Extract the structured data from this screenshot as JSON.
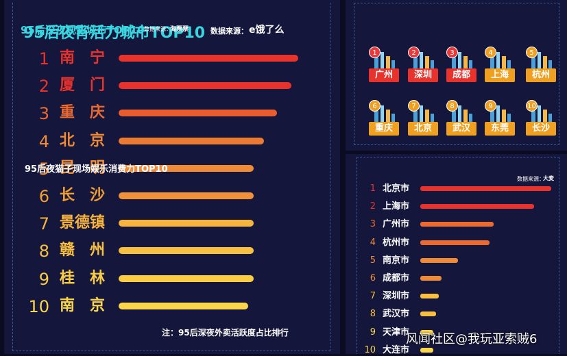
{
  "left_chart": {
    "title": "95后夜宵活力城市TOP10",
    "source_label": "数据来源：",
    "source_logo": "e饿了么",
    "note": "注：95后深夜外卖活跃度占比排行",
    "chart_data": {
      "type": "bar",
      "orientation": "horizontal",
      "categories": [
        "南　宁",
        "厦　门",
        "重　庆",
        "北　京",
        "昆　明",
        "长　沙",
        "景德镇",
        "赣　州",
        "桂　林",
        "南　京"
      ],
      "ranks": [
        "1",
        "2",
        "3",
        "4",
        "5",
        "6",
        "7",
        "8",
        "9",
        "10"
      ],
      "values": [
        100,
        96,
        88,
        81,
        75,
        75,
        75,
        75,
        75,
        72
      ],
      "colors": [
        "#e8332c",
        "#e8332c",
        "#e85c30",
        "#ec7a33",
        "#ef8a36",
        "#f09038",
        "#f7b43c",
        "#f8c03f",
        "#f9cc44",
        "#fad64a"
      ],
      "rank_colors": [
        "#e8332c",
        "#e8332c",
        "#ec6a30",
        "#ef8a36",
        "#f09038",
        "#f0a030",
        "#f7b43c",
        "#f8c03f",
        "#f9cc44",
        "#fad64a"
      ]
    }
  },
  "top_right": {
    "title": "95后深夜观影城市TOP10",
    "source_label": "数据来源：",
    "source_logo": "淘票票",
    "tiles": [
      {
        "rank": "1",
        "city": "广州",
        "color": "#e8332c"
      },
      {
        "rank": "2",
        "city": "深圳",
        "color": "#e8332c"
      },
      {
        "rank": "3",
        "city": "成都",
        "color": "#e8332c"
      },
      {
        "rank": "4",
        "city": "上海",
        "color": "#f0a020"
      },
      {
        "rank": "5",
        "city": "杭州",
        "color": "#f0a020"
      },
      {
        "rank": "6",
        "city": "重庆",
        "color": "#f0a020"
      },
      {
        "rank": "7",
        "city": "北京",
        "color": "#f0a020"
      },
      {
        "rank": "8",
        "city": "武汉",
        "color": "#f0a020"
      },
      {
        "rank": "9",
        "city": "东莞",
        "color": "#f0a020"
      },
      {
        "rank": "10",
        "city": "长沙",
        "color": "#f0a020"
      }
    ]
  },
  "bottom_right": {
    "title": "95后夜猫子现场娱乐消费力TOP10",
    "source_label": "数据来源：",
    "source_logo": "大麦",
    "chart_data": {
      "type": "bar",
      "orientation": "horizontal",
      "categories": [
        "北京市",
        "上海市",
        "广州市",
        "杭州市",
        "南京市",
        "成都市",
        "深圳市",
        "武汉市",
        "天津市",
        "大连市"
      ],
      "ranks": [
        "1",
        "2",
        "3",
        "4",
        "5",
        "6",
        "7",
        "8",
        "9",
        "10"
      ],
      "values": [
        100,
        87,
        56,
        53,
        29,
        16,
        14,
        12,
        10,
        10
      ],
      "colors": [
        "#e8332c",
        "#e8332c",
        "#ec6a30",
        "#ec6a30",
        "#ef8a36",
        "#ef8a36",
        "#f9c040",
        "#f9c040",
        "#fad64a",
        "#fad64a"
      ],
      "rank_colors": [
        "#e8332c",
        "#e8332c",
        "#ec6a30",
        "#ef8a36",
        "#ef8a36",
        "#f09038",
        "#f9c040",
        "#f9c040",
        "#fad64a",
        "#fad64a"
      ]
    }
  },
  "watermark": "风闻社区@我玩亚索贼6"
}
